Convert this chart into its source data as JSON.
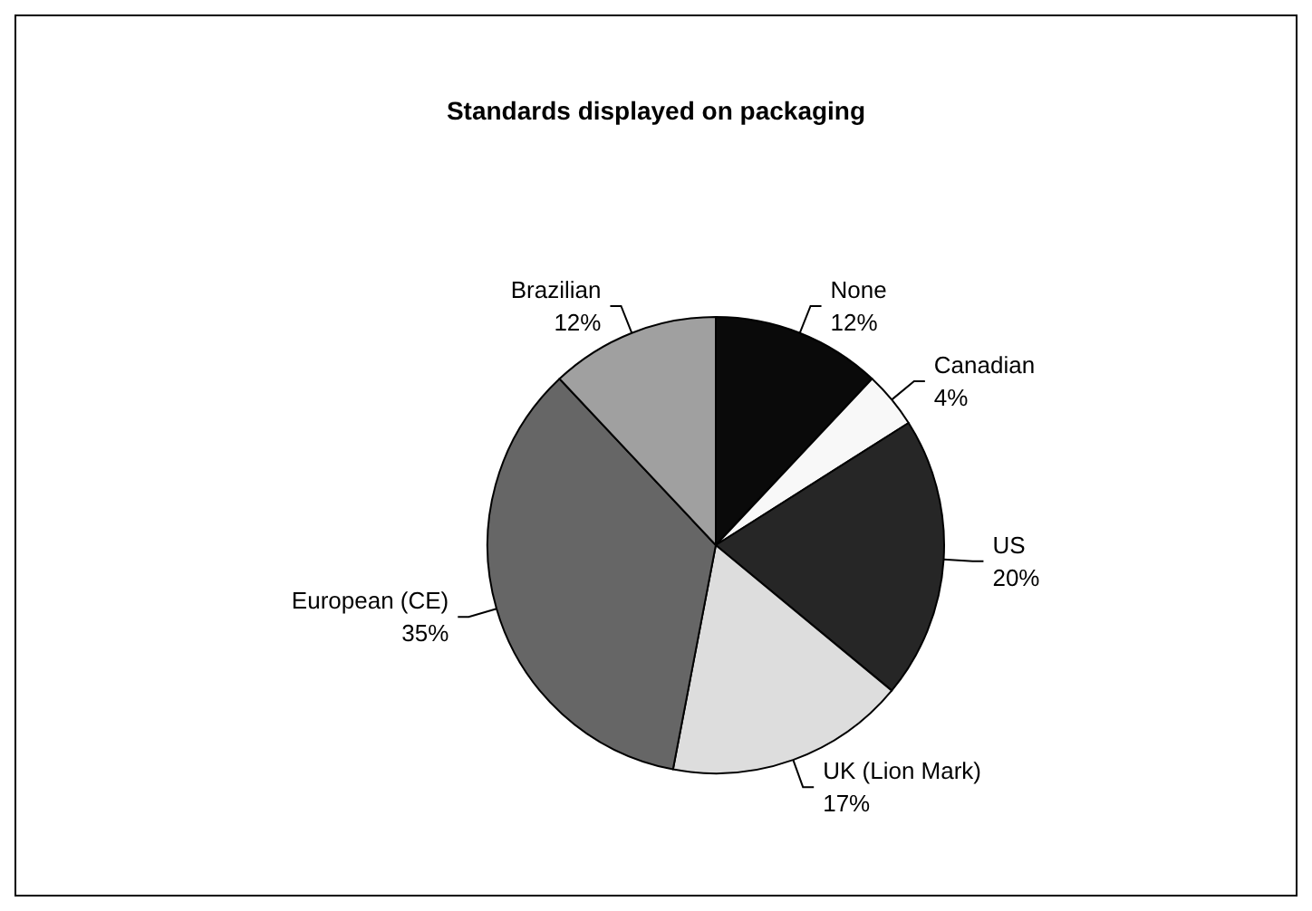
{
  "chart_data": {
    "type": "pie",
    "title": "Standards displayed on packaging",
    "categories": [
      "None",
      "Canadian",
      "US",
      "UK (Lion Mark)",
      "European (CE)",
      "Brazilian"
    ],
    "values": [
      12,
      4,
      20,
      17,
      35,
      12
    ],
    "value_labels": [
      "12%",
      "4%",
      "20%",
      "17%",
      "35%",
      "12%"
    ],
    "colors": [
      "#0a0a0a",
      "#f8f8f8",
      "#262626",
      "#dddddd",
      "#666666",
      "#a0a0a0"
    ],
    "legend": false
  }
}
